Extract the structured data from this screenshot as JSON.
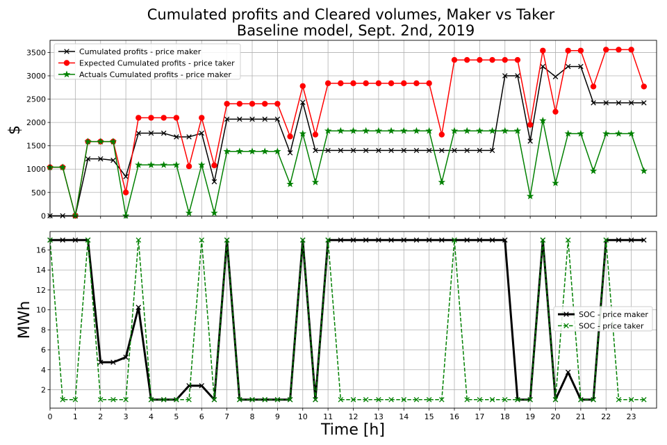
{
  "figure": {
    "title_line1": "Cumulated profits and Cleared volumes, Maker vs Taker",
    "title_line2": "Baseline model, Sept. 2nd, 2019"
  },
  "chart_data": [
    {
      "type": "line",
      "title": "Cumulated profits and Cleared volumes, Maker vs Taker\nBaseline model, Sept. 2nd, 2019",
      "xlabel": "",
      "ylabel": "$",
      "xlim": [
        0,
        24
      ],
      "ylim": [
        -10,
        3760
      ],
      "yticks": [
        0,
        500,
        1000,
        1500,
        2000,
        2500,
        3000,
        3500
      ],
      "grid": true,
      "legend": "top-left",
      "x": [
        0,
        0.5,
        1,
        1.5,
        2,
        2.5,
        3,
        3.5,
        4,
        4.5,
        5,
        5.5,
        6,
        6.5,
        7,
        7.5,
        8,
        8.5,
        9,
        9.5,
        10,
        10.5,
        11,
        11.5,
        12,
        12.5,
        13,
        13.5,
        14,
        14.5,
        15,
        15.5,
        16,
        16.5,
        17,
        17.5,
        18,
        18.5,
        19,
        19.5,
        20,
        20.5,
        21,
        21.5,
        22,
        22.5,
        23,
        23.5
      ],
      "series": [
        {
          "name": "Cumulated profits - price maker",
          "color": "#000000",
          "marker": "x",
          "linestyle": "solid",
          "values": [
            0,
            0,
            0,
            1220,
            1220,
            1190,
            840,
            1770,
            1770,
            1770,
            1690,
            1690,
            1770,
            730,
            2070,
            2070,
            2070,
            2070,
            2070,
            1350,
            2430,
            1400,
            1400,
            1400,
            1400,
            1400,
            1400,
            1400,
            1400,
            1400,
            1400,
            1400,
            1400,
            1400,
            1400,
            1400,
            3000,
            3000,
            1600,
            3200,
            2980,
            3200,
            3200,
            2420,
            2420,
            2420,
            2420,
            2420
          ]
        },
        {
          "name": "Expected Cumulated profits - price taker",
          "color": "#ff0000",
          "marker": "o",
          "linestyle": "solid",
          "values": [
            1040,
            1040,
            0,
            1590,
            1590,
            1590,
            500,
            2100,
            2100,
            2100,
            2100,
            1060,
            2100,
            1080,
            2400,
            2400,
            2400,
            2400,
            2400,
            1700,
            2780,
            1740,
            2840,
            2840,
            2840,
            2840,
            2840,
            2840,
            2840,
            2840,
            2840,
            1740,
            3340,
            3340,
            3340,
            3340,
            3340,
            3340,
            1950,
            3540,
            2230,
            3540,
            3540,
            2770,
            3560,
            3560,
            3560,
            2770
          ]
        },
        {
          "name": "Actuals Cumulated profits - price maker",
          "color": "#008000",
          "marker": "*",
          "linestyle": "solid",
          "values": [
            1040,
            1040,
            0,
            1590,
            1590,
            1590,
            0,
            1090,
            1090,
            1090,
            1090,
            60,
            1090,
            60,
            1380,
            1380,
            1380,
            1380,
            1380,
            680,
            1760,
            720,
            1820,
            1820,
            1820,
            1820,
            1820,
            1820,
            1820,
            1820,
            1820,
            720,
            1820,
            1820,
            1820,
            1820,
            1820,
            1820,
            420,
            2040,
            700,
            1760,
            1760,
            960,
            1760,
            1760,
            1760,
            960
          ]
        }
      ]
    },
    {
      "type": "line",
      "title": "",
      "xlabel": "Time [h]",
      "ylabel": "MWh",
      "xlim": [
        0,
        24
      ],
      "ylim": [
        0.15,
        17.85
      ],
      "xticks": [
        0,
        1,
        2,
        3,
        4,
        5,
        6,
        7,
        8,
        9,
        10,
        11,
        12,
        13,
        14,
        15,
        16,
        17,
        18,
        19,
        20,
        21,
        22,
        23
      ],
      "yticks": [
        2,
        4,
        6,
        8,
        10,
        12,
        14,
        16
      ],
      "grid": true,
      "legend": "center-right",
      "x": [
        0,
        0.5,
        1,
        1.5,
        2,
        2.5,
        3,
        3.5,
        4,
        4.5,
        5,
        5.5,
        6,
        6.5,
        7,
        7.5,
        8,
        8.5,
        9,
        9.5,
        10,
        10.5,
        11,
        11.5,
        12,
        12.5,
        13,
        13.5,
        14,
        14.5,
        15,
        15.5,
        16,
        16.5,
        17,
        17.5,
        18,
        18.5,
        19,
        19.5,
        20,
        20.5,
        21,
        21.5,
        22,
        22.5,
        23,
        23.5
      ],
      "series": [
        {
          "name": "SOC - price maker",
          "color": "#000000",
          "marker": "x",
          "linestyle": "solid",
          "values": [
            17,
            17,
            17,
            17,
            4.75,
            4.75,
            5.25,
            10.25,
            1,
            1,
            1,
            2.4,
            2.4,
            1,
            17,
            1,
            1,
            1,
            1,
            1,
            17,
            1,
            17,
            17,
            17,
            17,
            17,
            17,
            17,
            17,
            17,
            17,
            17,
            17,
            17,
            17,
            17,
            1,
            1,
            17,
            1,
            3.75,
            1,
            1,
            17,
            17,
            17,
            17
          ]
        },
        {
          "name": "SOC - price taker",
          "color": "#008000",
          "marker": "x",
          "linestyle": "dashed",
          "values": [
            17,
            1,
            1,
            17,
            1,
            1,
            1,
            17,
            1,
            1,
            1,
            1,
            17,
            1,
            17,
            1,
            1,
            1,
            1,
            1,
            17,
            1,
            17,
            1,
            1,
            1,
            1,
            1,
            1,
            1,
            1,
            1,
            17,
            1,
            1,
            1,
            1,
            1,
            1,
            17,
            1,
            17,
            1,
            1,
            17,
            1,
            1,
            1
          ]
        }
      ]
    }
  ]
}
